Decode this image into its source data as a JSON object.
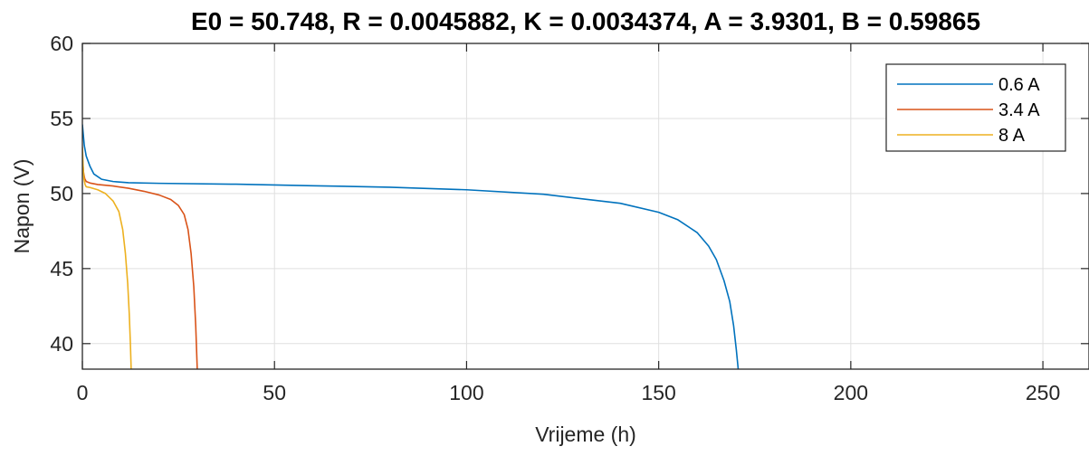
{
  "chart_data": {
    "type": "line",
    "title": "E0 = 50.748, R = 0.0045882, K = 0.0034374, A = 3.9301, B = 0.59865",
    "xlabel": "Vrijeme (h)",
    "ylabel": "Napon (V)",
    "xlim": [
      0,
      262
    ],
    "ylim": [
      38.3,
      60
    ],
    "xticks": [
      0,
      50,
      100,
      150,
      200,
      250
    ],
    "yticks": [
      40,
      45,
      50,
      55,
      60
    ],
    "xtick_labels": [
      "0",
      "50",
      "100",
      "150",
      "200",
      "250"
    ],
    "ytick_labels": [
      "40",
      "45",
      "50",
      "55",
      "60"
    ],
    "grid": true,
    "legend_position": "top-right",
    "series": [
      {
        "name": "0.6 A",
        "color": "#0072BD",
        "x": [
          0,
          0.5,
          1,
          2,
          3,
          5,
          8,
          12,
          20,
          40,
          60,
          80,
          100,
          120,
          140,
          150,
          155,
          160,
          163,
          165,
          167,
          168.5,
          169.5,
          170.2,
          170.7
        ],
        "y": [
          54.6,
          53.2,
          52.5,
          51.8,
          51.3,
          50.95,
          50.8,
          50.72,
          50.68,
          50.62,
          50.52,
          50.42,
          50.25,
          49.95,
          49.35,
          48.75,
          48.25,
          47.4,
          46.5,
          45.6,
          44.2,
          42.8,
          41.2,
          39.6,
          38.3
        ]
      },
      {
        "name": "3.4 A",
        "color": "#D95319",
        "x": [
          0,
          0.3,
          0.6,
          1,
          2,
          4,
          8,
          12,
          16,
          20,
          23,
          25,
          26.5,
          27.5,
          28.3,
          29,
          29.5,
          29.9
        ],
        "y": [
          52.4,
          51.4,
          51.0,
          50.8,
          50.7,
          50.6,
          50.5,
          50.35,
          50.15,
          49.9,
          49.6,
          49.2,
          48.6,
          47.6,
          46.0,
          43.8,
          41.2,
          38.3
        ]
      },
      {
        "name": "8 A",
        "color": "#EDB120",
        "x": [
          0,
          0.2,
          0.4,
          0.7,
          1,
          2,
          4,
          6,
          8,
          9.5,
          10.5,
          11.2,
          11.8,
          12.2,
          12.5,
          12.7
        ],
        "y": [
          53.1,
          51.8,
          51.0,
          50.6,
          50.45,
          50.4,
          50.25,
          50.0,
          49.5,
          48.8,
          47.6,
          46.0,
          44.0,
          42.0,
          40.0,
          38.3
        ]
      }
    ]
  }
}
